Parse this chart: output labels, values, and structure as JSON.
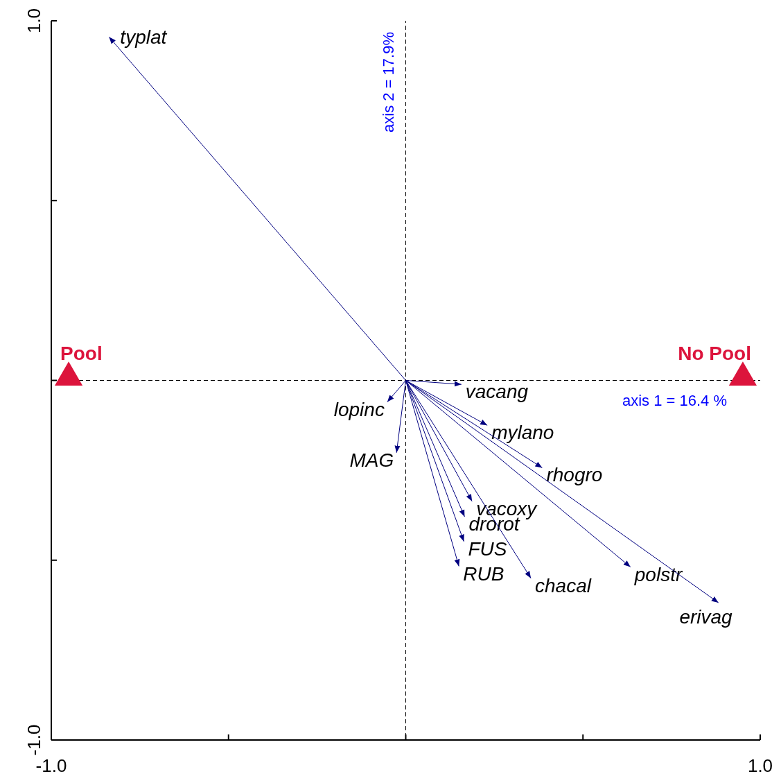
{
  "chart_data": {
    "type": "line",
    "xlim": [
      -1,
      1
    ],
    "ylim": [
      -1,
      1
    ],
    "xticks": [
      {
        "value": -1,
        "label": "-1.0"
      },
      {
        "value": -0.5,
        "label": null
      },
      {
        "value": 0,
        "label": null
      },
      {
        "value": 0.5,
        "label": null
      },
      {
        "value": 1,
        "label": "1.0"
      }
    ],
    "yticks": [
      {
        "value": -1,
        "label": "-1.0"
      },
      {
        "value": -0.5,
        "label": null
      },
      {
        "value": 0,
        "label": null
      },
      {
        "value": 0.5,
        "label": null
      },
      {
        "value": 1,
        "label": "1.0"
      }
    ],
    "grid": false,
    "marker": "none",
    "xlabel": "axis 1 = 16.4 %",
    "ylabel": "axis 2 = 17.9%",
    "ref_lines": [
      {
        "axis": "y",
        "value": 0,
        "line_style": "dashed"
      },
      {
        "axis": "x",
        "value": 0,
        "line_style": "dashed"
      }
    ],
    "series": [
      {
        "name": "typlat",
        "color": "#000080",
        "x": [
          0,
          -0.837
        ],
        "values": [
          0,
          0.955
        ]
      },
      {
        "name": "vacang",
        "color": "#000080",
        "x": [
          0,
          0.157
        ],
        "values": [
          0,
          -0.011
        ]
      },
      {
        "name": "lopinc",
        "color": "#000080",
        "x": [
          0,
          -0.052
        ],
        "values": [
          0,
          -0.06
        ]
      },
      {
        "name": "mylano",
        "color": "#000080",
        "x": [
          0,
          0.23
        ],
        "values": [
          0,
          -0.125
        ]
      },
      {
        "name": "MAG",
        "color": "#000080",
        "x": [
          0,
          -0.026
        ],
        "values": [
          0,
          -0.201
        ]
      },
      {
        "name": "rhogro",
        "color": "#000080",
        "x": [
          0,
          0.385
        ],
        "values": [
          0,
          -0.243
        ]
      },
      {
        "name": "vacoxy",
        "color": "#000080",
        "x": [
          0,
          0.187
        ],
        "values": [
          0,
          -0.336
        ]
      },
      {
        "name": "drorot",
        "color": "#000080",
        "x": [
          0,
          0.166
        ],
        "values": [
          0,
          -0.379
        ]
      },
      {
        "name": "FUS",
        "color": "#000080",
        "x": [
          0,
          0.164
        ],
        "values": [
          0,
          -0.448
        ]
      },
      {
        "name": "RUB",
        "color": "#000080",
        "x": [
          0,
          0.15
        ],
        "values": [
          0,
          -0.517
        ]
      },
      {
        "name": "chacal",
        "color": "#000080",
        "x": [
          0,
          0.353
        ],
        "values": [
          0,
          -0.55
        ]
      },
      {
        "name": "polstr",
        "color": "#000080",
        "x": [
          0,
          0.634
        ],
        "values": [
          0,
          -0.519
        ]
      },
      {
        "name": "erivag",
        "color": "#000080",
        "x": [
          0,
          0.882
        ],
        "values": [
          0,
          -0.618
        ]
      },
      {
        "name": "Pool",
        "type": "scatter",
        "marker": "triangle",
        "color": "#dc143c",
        "x": [
          -0.951
        ],
        "values": [
          0
        ]
      },
      {
        "name": "No Pool",
        "type": "scatter",
        "marker": "triangle",
        "color": "#dc143c",
        "x": [
          0.951
        ],
        "values": [
          0
        ]
      }
    ]
  }
}
